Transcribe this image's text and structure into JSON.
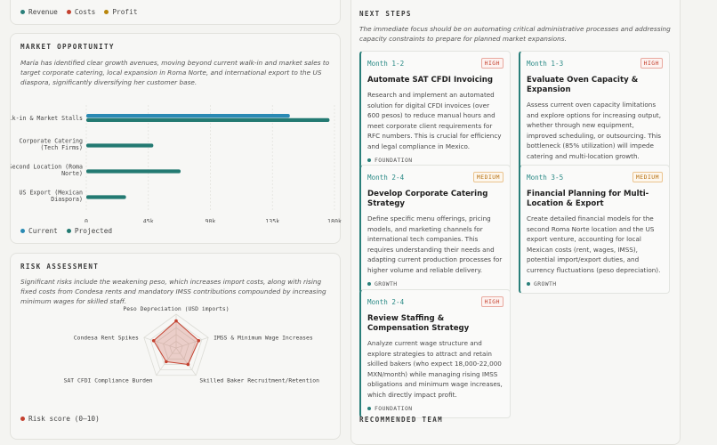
{
  "top_legend": {
    "items": [
      {
        "label": "Revenue",
        "color": "#2a7f7a"
      },
      {
        "label": "Costs",
        "color": "#c4412f"
      },
      {
        "label": "Profit",
        "color": "#b8860b"
      }
    ]
  },
  "market": {
    "title": "MARKET OPPORTUNITY",
    "description": "María has identified clear growth avenues, moving beyond current walk-in and market sales to target corporate catering, local expansion in Roma Norte, and international export to the US diaspora, significantly diversifying her customer base.",
    "legend": [
      {
        "label": "Current",
        "color": "#2a8ab4"
      },
      {
        "label": "Projected",
        "color": "#237a72"
      }
    ]
  },
  "chart_data": {
    "type": "bar",
    "orientation": "horizontal",
    "categories": [
      "Walk-in & Market Stalls",
      "Corporate Catering (Tech Firms)",
      "Second Location (Roma Norte)",
      "US Export (Mexican Diaspora)"
    ],
    "category_lines": [
      [
        "Walk-in & Market Stalls"
      ],
      [
        "Corporate Catering",
        "(Tech Firms)"
      ],
      [
        "Second Location (Roma",
        "Norte)"
      ],
      [
        "US Export (Mexican",
        "Diaspora)"
      ]
    ],
    "series": [
      {
        "name": "Current",
        "values": [
          82000,
          0,
          0,
          0
        ],
        "color": "#2a8ab4"
      },
      {
        "name": "Projected",
        "values": [
          98000,
          27000,
          38000,
          16000
        ],
        "color": "#237a72"
      }
    ],
    "xlim": [
      0,
      100000
    ],
    "xticks": [
      "0",
      "45k",
      "90k",
      "135k",
      "180k"
    ],
    "grid": true,
    "legend_position": "bottom-left"
  },
  "risk": {
    "title": "RISK ASSESSMENT",
    "description": "Significant risks include the weakening peso, which increases import costs, along with rising fixed costs from Condesa rents and mandatory IMSS contributions compounded by increasing minimum wages for skilled staff.",
    "axes": [
      "Peso Depreciation (USD imports)",
      "IMSS & Minimum Wage Increases",
      "Skilled Baker Recruitment/Retention",
      "SAT CFDI Compliance Burden",
      "Condesa Rent Spikes"
    ],
    "scores": [
      8,
      7,
      6,
      5,
      7
    ],
    "max_score": 10,
    "legend_label": "Risk score (0–10)",
    "color": "#c4412f"
  },
  "next_steps": {
    "title": "NEXT STEPS",
    "intro": "The immediate focus should be on automating critical administrative processes and addressing capacity constraints to prepare for planned market expansions.",
    "items": [
      {
        "month": "Month 1-2",
        "priority": "HIGH",
        "title": "Automate SAT CFDI Invoicing",
        "body": "Research and implement an automated solution for digital CFDI invoices (over 600 pesos) to reduce manual hours and meet corporate client requirements for RFC numbers. This is crucial for efficiency and legal compliance in Mexico.",
        "tag": "FOUNDATION"
      },
      {
        "month": "Month 1-3",
        "priority": "HIGH",
        "title": "Evaluate Oven Capacity & Expansion",
        "body": "Assess current oven capacity limitations and explore options for increasing output, whether through new equipment, improved scheduling, or outsourcing. This bottleneck (85% utilization) will impede catering and multi-location growth.",
        "tag": "GROWTH"
      },
      {
        "month": "Month 2-4",
        "priority": "MEDIUM",
        "title": "Develop Corporate Catering Strategy",
        "body": "Define specific menu offerings, pricing models, and marketing channels for international tech companies. This requires understanding their needs and adapting current production processes for higher volume and reliable delivery.",
        "tag": "GROWTH"
      },
      {
        "month": "Month 3-5",
        "priority": "MEDIUM",
        "title": "Financial Planning for Multi-Location & Export",
        "body": "Create detailed financial models for the second Roma Norte location and the US export venture, accounting for local Mexican costs (rent, wages, IMSS), potential import/export duties, and currency fluctuations (peso depreciation).",
        "tag": "GROWTH"
      },
      {
        "month": "Month 2-4",
        "priority": "HIGH",
        "title": "Review Staffing & Compensation Strategy",
        "body": "Analyze current wage structure and explore strategies to attract and retain skilled bakers (who expect 18,000-22,000 MXN/month) while managing rising IMSS obligations and minimum wage increases, which directly impact profit.",
        "tag": "FOUNDATION"
      }
    ]
  },
  "team": {
    "title": "RECOMMENDED TEAM"
  }
}
